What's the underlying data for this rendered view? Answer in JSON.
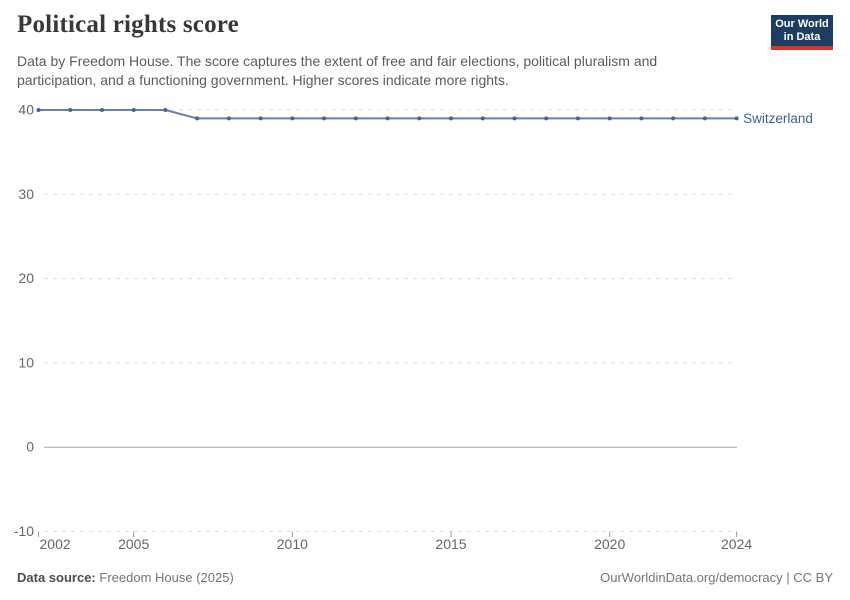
{
  "header": {
    "title": "Political rights score",
    "subtitle": "Data by Freedom House. The score captures the extent of free and fair elections, political pluralism and participation, and a functioning government. Higher scores indicate more rights.",
    "logo": {
      "line1": "Our World",
      "line2": "in Data"
    }
  },
  "chart_data": {
    "type": "line",
    "title": "Political rights score",
    "x": [
      2002,
      2003,
      2004,
      2005,
      2006,
      2007,
      2008,
      2009,
      2010,
      2011,
      2012,
      2013,
      2014,
      2015,
      2016,
      2017,
      2018,
      2019,
      2020,
      2021,
      2022,
      2023,
      2024
    ],
    "series": [
      {
        "name": "Switzerland",
        "values": [
          40,
          40,
          40,
          40,
          40,
          39,
          39,
          39,
          39,
          39,
          39,
          39,
          39,
          39,
          39,
          39,
          39,
          39,
          39,
          39,
          39,
          39,
          39
        ]
      }
    ],
    "x_ticks": [
      2002,
      2005,
      2010,
      2015,
      2020,
      2024
    ],
    "y_ticks": [
      40,
      30,
      20,
      10,
      0,
      -10
    ],
    "xlim": [
      2002,
      2024
    ],
    "ylim": [
      -10,
      40
    ],
    "zero_line": 0,
    "grid": "horizontal-dashed",
    "legend_position": "end-of-line"
  },
  "footer": {
    "source_label": "Data source:",
    "source_value": "Freedom House (2025)",
    "credit": "OurWorldinData.org/democracy | CC BY"
  },
  "colors": {
    "logo_navy": "#1d3d63",
    "logo_red": "#d8352a",
    "line": "#6680b4",
    "point": "#44639f",
    "entity_label": "#3d619e",
    "grid": "#dcdcdc",
    "zero_line": "#a7a7a7",
    "tick_mark": "#999999",
    "axis_text": "#666666"
  }
}
